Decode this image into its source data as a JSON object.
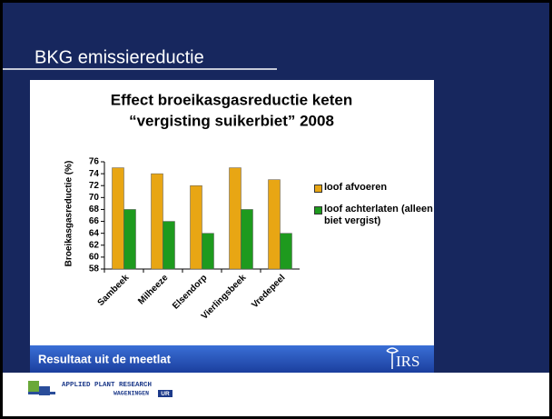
{
  "slide": {
    "title": "BKG emissiereductie",
    "footer_text": "Resultaat uit de meetlat",
    "logo_irs": "IRS",
    "org": "APPLIED PLANT RESEARCH",
    "org_sub": "WAGENINGEN",
    "org_badge": "UR"
  },
  "chart_data": {
    "type": "bar",
    "title": [
      "Effect broeikasgasreductie keten",
      "“vergisting suikerbiet” 2008"
    ],
    "ylabel": "Broeikasgasreductie (%)",
    "categories": [
      "Sambeek",
      "Milheeze",
      "Elsendorp",
      "Vierlingsbeek",
      "Vredepeel"
    ],
    "series": [
      {
        "name": "loof afvoeren",
        "color": "#e8a614",
        "values": [
          75,
          74,
          72,
          75,
          73
        ]
      },
      {
        "name": "loof achterlaten (alleen biet vergist)",
        "color": "#1e9a1e",
        "values": [
          68,
          66,
          64,
          68,
          64
        ]
      }
    ],
    "ylim": [
      58,
      76
    ],
    "yticks": [
      58,
      60,
      62,
      64,
      66,
      68,
      70,
      72,
      74,
      76
    ],
    "legend": "right"
  }
}
